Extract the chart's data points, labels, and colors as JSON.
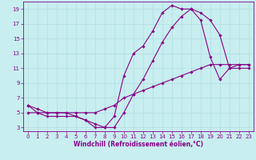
{
  "xlabel": "Windchill (Refroidissement éolien,°C)",
  "xlim": [
    -0.5,
    23.5
  ],
  "ylim": [
    2.5,
    20
  ],
  "xticks": [
    0,
    1,
    2,
    3,
    4,
    5,
    6,
    7,
    8,
    9,
    10,
    11,
    12,
    13,
    14,
    15,
    16,
    17,
    18,
    19,
    20,
    21,
    22,
    23
  ],
  "yticks": [
    3,
    5,
    7,
    9,
    11,
    13,
    15,
    17,
    19
  ],
  "background_color": "#c8eef0",
  "grid_color": "#b0dde0",
  "line_color": "#880088",
  "line1_x": [
    0,
    1,
    2,
    3,
    4,
    5,
    6,
    7,
    8,
    9,
    10,
    11,
    12,
    13,
    14,
    15,
    16,
    17,
    18,
    19,
    20,
    21,
    22,
    23
  ],
  "line1_y": [
    6,
    5,
    4.5,
    4.5,
    4.5,
    4.5,
    4,
    3,
    3,
    4.5,
    10,
    13,
    14,
    16,
    18.5,
    19.5,
    19.0,
    19.0,
    17.5,
    12.5,
    9.5,
    11.0,
    11.5,
    11.5
  ],
  "line2_x": [
    0,
    1,
    2,
    3,
    4,
    5,
    6,
    7,
    8,
    9,
    10,
    11,
    12,
    13,
    14,
    15,
    16,
    17,
    18,
    19,
    20,
    21,
    22,
    23
  ],
  "line2_y": [
    5,
    5,
    5,
    5,
    5,
    5,
    5,
    5,
    5.5,
    6,
    7,
    7.5,
    8,
    8.5,
    9,
    9.5,
    10,
    10.5,
    11,
    11.5,
    11.5,
    11.5,
    11.5,
    11.5
  ],
  "line3_x": [
    0,
    1,
    2,
    3,
    4,
    5,
    6,
    7,
    8,
    9,
    10,
    11,
    12,
    13,
    14,
    15,
    16,
    17,
    18,
    19,
    20,
    21,
    22,
    23
  ],
  "line3_y": [
    6,
    5.5,
    5,
    5,
    5,
    4.5,
    4,
    3.5,
    3,
    3,
    5,
    7.5,
    9.5,
    12,
    14.5,
    16.5,
    18.0,
    19.0,
    18.5,
    17.5,
    15.5,
    11.0,
    11.0,
    11.0
  ],
  "marker": "D",
  "markersize": 1.8,
  "linewidth": 0.8,
  "tick_fontsize": 5.0,
  "xlabel_fontsize": 5.5
}
